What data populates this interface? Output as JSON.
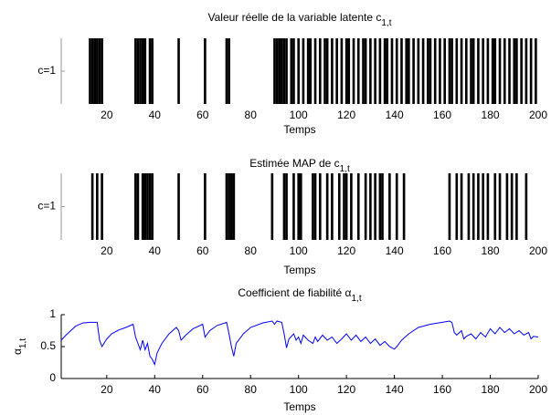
{
  "chart_data": [
    {
      "type": "raster",
      "title": "Valeur réelle de la variable latente c",
      "title_subscript": "1,t",
      "xlabel": "Temps",
      "x": [
        13,
        14,
        15,
        16,
        17,
        18,
        32,
        33,
        34,
        35,
        36,
        38,
        39,
        50,
        61,
        70,
        71,
        90,
        91,
        92,
        93,
        94,
        95,
        97,
        98,
        100,
        102,
        104,
        105,
        107,
        109,
        111,
        112,
        114,
        116,
        118,
        120,
        121,
        123,
        125,
        127,
        128,
        130,
        132,
        134,
        136,
        137,
        139,
        141,
        143,
        145,
        146,
        148,
        150,
        152,
        154,
        155,
        157,
        159,
        161,
        163,
        164,
        166,
        168,
        170,
        172,
        173,
        175,
        177,
        179,
        181,
        182,
        184,
        186,
        188,
        190,
        191,
        193,
        195,
        197,
        199
      ],
      "values": [
        1,
        1,
        1,
        1,
        1,
        1,
        1,
        1,
        1,
        1,
        1,
        1,
        1,
        1,
        1,
        1,
        1,
        1,
        1,
        1,
        1,
        1,
        1,
        1,
        1,
        1,
        1,
        1,
        1,
        1,
        1,
        1,
        1,
        1,
        1,
        1,
        1,
        1,
        1,
        1,
        1,
        1,
        1,
        1,
        1,
        1,
        1,
        1,
        1,
        1,
        1,
        1,
        1,
        1,
        1,
        1,
        1,
        1,
        1,
        1,
        1,
        1,
        1,
        1,
        1,
        1,
        1,
        1,
        1,
        1,
        1,
        1,
        1,
        1,
        1,
        1,
        1,
        1,
        1,
        1,
        1
      ],
      "color": "#000000",
      "xlim": [
        1,
        200
      ],
      "xticks": [
        20,
        40,
        60,
        80,
        100,
        120,
        140,
        160,
        180,
        200
      ],
      "ylim": [
        0.5,
        1.5
      ],
      "yticks": [
        {
          "value": 1,
          "label": "c=1"
        }
      ]
    },
    {
      "type": "raster",
      "title": "Estimée MAP de c",
      "title_subscript": "1,t",
      "xlabel": "Temps",
      "x": [
        14,
        16,
        18,
        32,
        33,
        35,
        36,
        37,
        38,
        39,
        50,
        61,
        70,
        71,
        72,
        73,
        89,
        94,
        95,
        98,
        100,
        101,
        106,
        107,
        109,
        112,
        114,
        117,
        119,
        120,
        122,
        125,
        128,
        130,
        132,
        134,
        135,
        138,
        141,
        144,
        163,
        166,
        168,
        171,
        173,
        175,
        177,
        179,
        182,
        184,
        187,
        189,
        191,
        195
      ],
      "values": [
        1,
        1,
        1,
        1,
        1,
        1,
        1,
        1,
        1,
        1,
        1,
        1,
        1,
        1,
        1,
        1,
        1,
        1,
        1,
        1,
        1,
        1,
        1,
        1,
        1,
        1,
        1,
        1,
        1,
        1,
        1,
        1,
        1,
        1,
        1,
        1,
        1,
        1,
        1,
        1,
        1,
        1,
        1,
        1,
        1,
        1,
        1,
        1,
        1,
        1,
        1,
        1,
        1,
        1
      ],
      "color": "#000000",
      "xlim": [
        1,
        200
      ],
      "xticks": [
        20,
        40,
        60,
        80,
        100,
        120,
        140,
        160,
        180,
        200
      ],
      "ylim": [
        0.5,
        1.5
      ],
      "yticks": [
        {
          "value": 1,
          "label": "c=1"
        }
      ]
    },
    {
      "type": "line",
      "title": "Coefficient de fiabilité α",
      "title_subscript": "1,t",
      "xlabel": "Temps",
      "ylabel": "α",
      "ylabel_subscript": "1,t",
      "x": [
        1,
        3,
        5,
        7,
        10,
        13,
        16,
        17,
        18,
        20,
        22,
        25,
        28,
        31,
        32,
        33,
        34,
        35,
        36,
        37,
        38,
        39,
        40,
        41,
        43,
        46,
        49,
        50,
        51,
        53,
        56,
        60,
        61,
        63,
        66,
        70,
        71,
        72,
        73,
        74,
        77,
        80,
        85,
        89,
        90,
        91,
        93,
        94,
        95,
        96,
        98,
        99,
        100,
        101,
        102,
        104,
        106,
        107,
        108,
        110,
        112,
        114,
        116,
        118,
        120,
        122,
        124,
        126,
        128,
        130,
        132,
        134,
        136,
        138,
        140,
        141,
        143,
        146,
        150,
        155,
        160,
        163,
        164,
        165,
        166,
        168,
        169,
        170,
        172,
        174,
        176,
        178,
        180,
        182,
        184,
        186,
        188,
        190,
        192,
        194,
        196,
        197,
        198,
        200
      ],
      "values": [
        0.6,
        0.68,
        0.75,
        0.82,
        0.87,
        0.88,
        0.88,
        0.6,
        0.5,
        0.62,
        0.7,
        0.76,
        0.8,
        0.85,
        0.65,
        0.55,
        0.45,
        0.6,
        0.45,
        0.55,
        0.35,
        0.3,
        0.22,
        0.4,
        0.55,
        0.7,
        0.8,
        0.75,
        0.6,
        0.68,
        0.78,
        0.85,
        0.65,
        0.75,
        0.83,
        0.88,
        0.7,
        0.5,
        0.35,
        0.55,
        0.7,
        0.8,
        0.87,
        0.9,
        0.85,
        0.9,
        0.88,
        0.7,
        0.48,
        0.62,
        0.7,
        0.6,
        0.65,
        0.55,
        0.68,
        0.6,
        0.55,
        0.65,
        0.58,
        0.68,
        0.6,
        0.65,
        0.55,
        0.62,
        0.7,
        0.6,
        0.68,
        0.58,
        0.65,
        0.55,
        0.62,
        0.52,
        0.58,
        0.5,
        0.46,
        0.5,
        0.6,
        0.7,
        0.8,
        0.85,
        0.88,
        0.9,
        0.88,
        0.72,
        0.68,
        0.75,
        0.62,
        0.66,
        0.7,
        0.62,
        0.72,
        0.65,
        0.78,
        0.7,
        0.8,
        0.72,
        0.78,
        0.7,
        0.75,
        0.68,
        0.72,
        0.62,
        0.66,
        0.65
      ],
      "color": "#0000ff",
      "xlim": [
        1,
        200
      ],
      "xticks": [
        20,
        40,
        60,
        80,
        100,
        120,
        140,
        160,
        180,
        200
      ],
      "ylim": [
        0,
        1
      ],
      "yticks": [
        0,
        0.5,
        1
      ]
    }
  ]
}
